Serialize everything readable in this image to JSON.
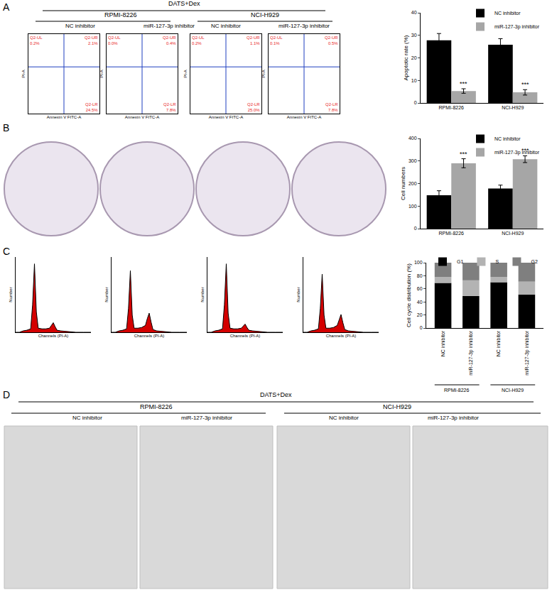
{
  "panel_labels": [
    "A",
    "B",
    "C",
    "D"
  ],
  "treatment": "DATS+Dex",
  "cell_lines": [
    "RPMI-8226",
    "NCI-H929"
  ],
  "groups": [
    "NC inhibitor",
    "miR-127-3p inhibitor"
  ],
  "chart_data": [
    {
      "type": "flow_cytometry",
      "panel": "A",
      "xlabel": "Annexin V FITC-A",
      "ylabel": "PI-A",
      "xlim": [
        -0.8,
        7.2
      ],
      "ylim": [
        -0.8,
        7.2
      ],
      "gate": {
        "x": 3.2,
        "y": 3.9
      },
      "tick_labels": false,
      "color": "#e8262a",
      "plots": [
        {
          "quadrants": [
            {
              "label": "Q2-UL",
              "value": 0.2,
              "value_label": "0.2%"
            },
            {
              "label": "Q2-UR",
              "value": 2.1,
              "value_label": "2.1%"
            },
            {
              "label": "Q2-LR",
              "value": 24.5,
              "value_label": "24.5%"
            }
          ]
        },
        {
          "quadrants": [
            {
              "label": "Q2-UL",
              "value": 0.0,
              "value_label": "0.0%"
            },
            {
              "label": "Q2-UR",
              "value": 0.4,
              "value_label": "0.4%"
            },
            {
              "label": "Q2-LR",
              "value": 7.8,
              "value_label": "7.8%"
            }
          ]
        },
        {
          "quadrants": [
            {
              "label": "Q2-UL",
              "value": 0.2,
              "value_label": "0.2%"
            },
            {
              "label": "Q2-UR",
              "value": 1.1,
              "value_label": "1.1%"
            },
            {
              "label": "Q2-LR",
              "value": 25.0,
              "value_label": "25.0%"
            }
          ]
        },
        {
          "quadrants": [
            {
              "label": "Q2-UL",
              "value": 0.1,
              "value_label": "0.1%"
            },
            {
              "label": "Q2-UR",
              "value": 0.5,
              "value_label": "0.5%"
            },
            {
              "label": "Q2-LR",
              "value": 7.8,
              "value_label": "7.8%"
            }
          ]
        }
      ]
    },
    {
      "type": "bar",
      "panel": "A",
      "ylabel": "Apoptotic rate (%)",
      "categories": [
        "RPMI-8226",
        "NCI-H929"
      ],
      "ylim": [
        0,
        40
      ],
      "yticks": [
        0,
        10,
        20,
        30,
        40
      ],
      "legend": "top right",
      "series": [
        {
          "name": "NC inhibitor",
          "color": "#000000",
          "values": [
            27.8,
            25.8
          ],
          "errors": [
            3.0,
            2.7
          ]
        },
        {
          "name": "miR-127-3p inhibitor",
          "color": "#a6a6a6",
          "values": [
            5.3,
            4.7
          ],
          "errors": [
            1.0,
            1.2
          ],
          "significance": [
            "***",
            "***"
          ]
        }
      ]
    },
    {
      "type": "colony_plates",
      "panel": "B",
      "color": "#ebe5ef"
    },
    {
      "type": "bar",
      "panel": "B",
      "ylabel": "Cell numbers",
      "categories": [
        "RPMI-8226",
        "NCI-H929"
      ],
      "ylim": [
        0,
        400
      ],
      "yticks": [
        0,
        100,
        200,
        300,
        400
      ],
      "legend": "top right",
      "series": [
        {
          "name": "NC inhibitor",
          "color": "#000000",
          "values": [
            148,
            178
          ],
          "errors": [
            20,
            15
          ]
        },
        {
          "name": "miR-127-3p inhibitor",
          "color": "#a6a6a6",
          "values": [
            290,
            308
          ],
          "errors": [
            20,
            15
          ],
          "significance": [
            "***",
            "***"
          ]
        }
      ]
    },
    {
      "type": "area",
      "panel": "C",
      "xlabel": "Channels (PI-A)",
      "ylabel": "Number",
      "xlim": [
        0,
        200
      ],
      "ylim": [
        0,
        110
      ],
      "tick_labels": false,
      "color": "#d40000",
      "x": [
        0,
        10,
        20,
        30,
        40,
        45,
        50,
        55,
        60,
        70,
        80,
        90,
        95,
        100,
        105,
        110,
        120,
        140,
        160,
        180,
        200
      ],
      "series": [
        {
          "values": [
            0,
            0,
            2,
            3,
            5,
            40,
            100,
            30,
            6,
            5,
            5,
            6,
            10,
            14,
            8,
            3,
            2,
            1,
            0,
            0,
            0
          ]
        },
        {
          "values": [
            0,
            0,
            2,
            3,
            5,
            35,
            90,
            25,
            6,
            6,
            7,
            10,
            20,
            28,
            15,
            4,
            2,
            1,
            0,
            0,
            0
          ]
        },
        {
          "values": [
            0,
            0,
            2,
            3,
            5,
            40,
            100,
            28,
            6,
            5,
            5,
            6,
            9,
            12,
            7,
            3,
            2,
            1,
            0,
            0,
            0
          ]
        },
        {
          "values": [
            0,
            0,
            2,
            3,
            5,
            35,
            85,
            25,
            6,
            6,
            7,
            10,
            18,
            26,
            14,
            4,
            2,
            1,
            0,
            0,
            0
          ]
        }
      ]
    },
    {
      "type": "bar",
      "panel": "C",
      "stacked": true,
      "ylabel": "Cell cycle distribution (%)",
      "categories": [
        "NC inhibitor",
        "miR-127-3p inhibitor",
        "NC inhibitor",
        "miR-127-3p inhibitor"
      ],
      "ylim": [
        0,
        100
      ],
      "yticks": [
        0,
        20,
        40,
        60,
        80,
        100
      ],
      "legend": "top",
      "series": [
        {
          "name": "G1",
          "color": "#000000",
          "values": [
            69,
            49,
            70,
            51
          ]
        },
        {
          "name": "S",
          "color": "#b3b3b3",
          "values": [
            9,
            24,
            8,
            20
          ]
        },
        {
          "name": "G2",
          "color": "#7f7f7f",
          "values": [
            22,
            27,
            22,
            29
          ]
        }
      ]
    },
    {
      "type": "image",
      "panel": "D",
      "color": "#d9d9d9"
    }
  ]
}
